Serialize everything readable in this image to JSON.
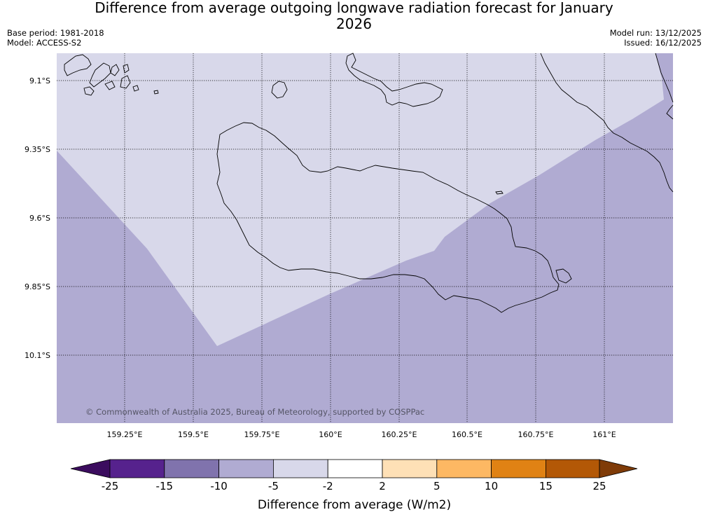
{
  "title": "Difference from average outgoing longwave radiation forecast for January 2026",
  "meta_left": {
    "base_period": "Base period: 1981-2018",
    "model": "Model: ACCESS-S2"
  },
  "meta_right": {
    "model_run": "Model run: 13/12/2025",
    "issued": "Issued: 16/12/2025"
  },
  "map": {
    "lat_labels": [
      "9.1°S",
      "9.35°S",
      "9.6°S",
      "9.85°S",
      "10.1°S"
    ],
    "lon_labels": [
      "159.25°E",
      "159.5°E",
      "159.75°E",
      "160°E",
      "160.25°E",
      "160.5°E",
      "160.75°E",
      "161°E"
    ],
    "copyright": "© Commonwealth of Australia 2025, Bureau of Meteorology, supported by COSPPac",
    "fill_colors": {
      "band_minus_10_to_minus_5": "#b0abd2",
      "band_minus_5_to_minus_2": "#d8d8ea"
    }
  },
  "colorbar": {
    "label": "Difference from average (W/m2)",
    "ticks": [
      "-25",
      "-15",
      "-10",
      "-5",
      "-2",
      "2",
      "5",
      "10",
      "15",
      "25"
    ],
    "colors": [
      "#3b0c5e",
      "#56228d",
      "#8073ad",
      "#b0abd2",
      "#d8d8ea",
      "#ffffff",
      "#fee0b6",
      "#fdb863",
      "#e08214",
      "#b35806",
      "#7f3b08"
    ]
  }
}
